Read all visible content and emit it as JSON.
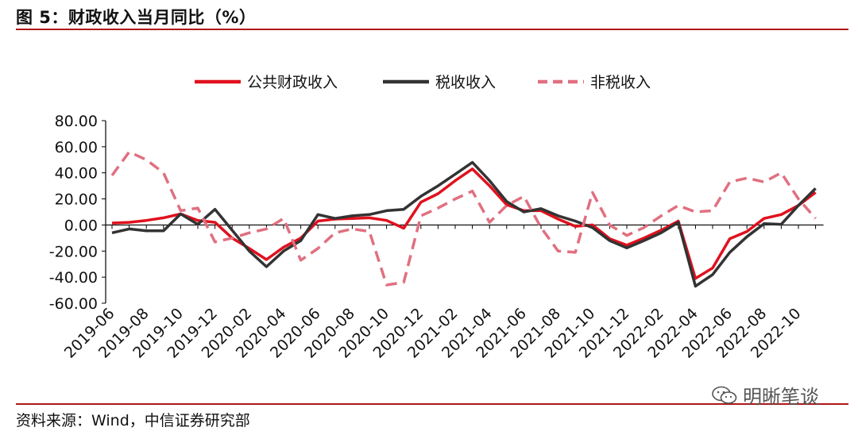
{
  "header": {
    "title": "图 5：财政收入当月同比（%）"
  },
  "footer": {
    "source": "资料来源：Wind，中信证券研究部"
  },
  "watermark": {
    "text": "明晰笔谈"
  },
  "chart_data": {
    "type": "line",
    "title": "",
    "xlabel": "",
    "ylabel": "",
    "ylim": [
      -60,
      80
    ],
    "yticks": [
      "80.00",
      "60.00",
      "40.00",
      "20.00",
      "0.00",
      "-20.00",
      "-40.00",
      "-60.00"
    ],
    "grid": false,
    "legend_position": "top-center",
    "x": [
      "2019-06",
      "2019-07",
      "2019-08",
      "2019-09",
      "2019-10",
      "2019-11",
      "2019-12",
      "2020-01",
      "2020-02",
      "2020-03",
      "2020-04",
      "2020-05",
      "2020-06",
      "2020-07",
      "2020-08",
      "2020-09",
      "2020-10",
      "2020-11",
      "2020-12",
      "2021-01",
      "2021-02",
      "2021-03",
      "2021-04",
      "2021-05",
      "2021-06",
      "2021-07",
      "2021-08",
      "2021-09",
      "2021-10",
      "2021-11",
      "2021-12",
      "2022-01",
      "2022-02",
      "2022-03",
      "2022-04",
      "2022-05",
      "2022-06",
      "2022-07",
      "2022-08",
      "2022-09",
      "2022-10",
      "2022-11"
    ],
    "xtick_labels": [
      "2019-06",
      "2019-08",
      "2019-10",
      "2019-12",
      "2020-02",
      "2020-04",
      "2020-06",
      "2020-08",
      "2020-10",
      "2020-12",
      "2021-02",
      "2021-04",
      "2021-06",
      "2021-08",
      "2021-10",
      "2021-12",
      "2022-02",
      "2022-04",
      "2022-06",
      "2022-08",
      "2022-10"
    ],
    "series": [
      {
        "name": "公共财政收入",
        "color": "#e0111e",
        "dash": false,
        "values": [
          1.5,
          2.0,
          3.5,
          5.5,
          8.5,
          3.5,
          2.0,
          -10.0,
          -18.0,
          -26.5,
          -17.0,
          -10.0,
          3.0,
          4.5,
          5.0,
          5.5,
          3.5,
          -2.5,
          17.5,
          24.0,
          34.0,
          43.0,
          30.0,
          15.5,
          11.0,
          11.0,
          4.5,
          -1.0,
          0.0,
          -10.5,
          -15.5,
          -10.0,
          -4.0,
          3.0,
          -41.0,
          -33.0,
          -10.5,
          -5.0,
          5.0,
          8.0,
          15.0,
          25.0
        ]
      },
      {
        "name": "税收收入",
        "color": "#333333",
        "dash": false,
        "values": [
          -6.0,
          -3.0,
          -4.5,
          -4.5,
          8.5,
          0.5,
          12.0,
          -4.0,
          -20.0,
          -32.0,
          -20.0,
          -12.0,
          8.0,
          5.0,
          7.0,
          8.0,
          11.0,
          12.0,
          22.0,
          30.0,
          39.0,
          48.0,
          34.0,
          18.0,
          10.0,
          12.5,
          7.0,
          3.0,
          -2.0,
          -12.0,
          -17.5,
          -12.0,
          -6.0,
          2.0,
          -47.0,
          -38.0,
          -21.0,
          -9.0,
          1.0,
          0.5,
          15.0,
          28.0
        ]
      },
      {
        "name": "非税收入",
        "color": "#e07080",
        "dash": true,
        "values": [
          38.0,
          56.0,
          50.0,
          40.0,
          11.0,
          13.0,
          -13.0,
          -10.0,
          -6.0,
          -3.0,
          5.0,
          -27.0,
          -18.0,
          -6.0,
          -3.0,
          -5.0,
          -46.0,
          -44.0,
          7.0,
          13.0,
          20.0,
          26.0,
          2.0,
          15.0,
          22.0,
          -2.0,
          -20.0,
          -21.0,
          25.0,
          0.0,
          -8.0,
          -2.0,
          7.0,
          15.0,
          10.0,
          11.0,
          33.0,
          36.0,
          33.0,
          40.0,
          20.0,
          5.0
        ]
      }
    ]
  }
}
